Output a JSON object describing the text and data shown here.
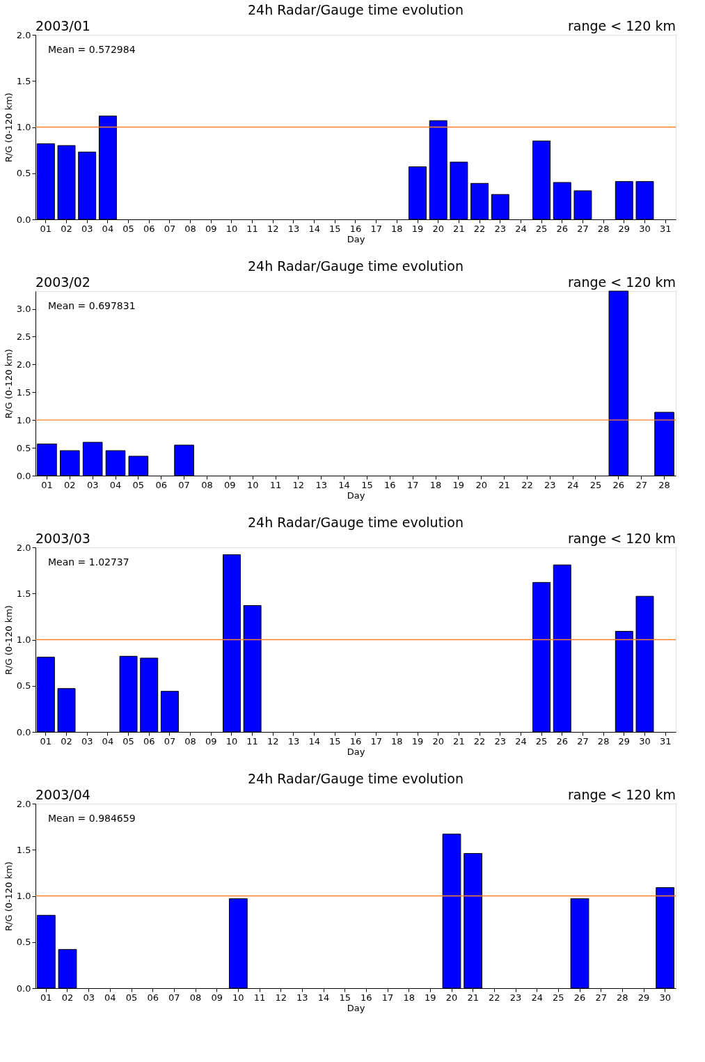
{
  "chart_data": [
    {
      "type": "bar",
      "title": "24h Radar/Gauge time evolution",
      "xlabel": "Day",
      "ylabel": "R/G    (0-120 km)",
      "categories": [
        "01",
        "02",
        "03",
        "04",
        "05",
        "06",
        "07",
        "08",
        "09",
        "10",
        "11",
        "12",
        "13",
        "14",
        "15",
        "16",
        "17",
        "18",
        "19",
        "20",
        "21",
        "22",
        "23",
        "24",
        "25",
        "26",
        "27",
        "28",
        "29",
        "30",
        "31"
      ],
      "values": [
        0.82,
        0.8,
        0.73,
        1.12,
        null,
        null,
        null,
        null,
        null,
        null,
        null,
        null,
        null,
        null,
        null,
        null,
        null,
        null,
        0.57,
        1.07,
        0.62,
        0.39,
        0.27,
        null,
        0.85,
        0.4,
        0.31,
        null,
        0.41,
        0.41,
        null
      ],
      "color": "#0000ff",
      "ylim": [
        0,
        2
      ],
      "yticks": [
        {
          "value": 0,
          "label": "0.0"
        },
        0.5,
        {
          "value": 1,
          "label": "1.0"
        },
        1.5,
        {
          "value": 2,
          "label": "2.0"
        }
      ],
      "ref_lines": [
        {
          "axis": "y",
          "value": 1,
          "color": "#ff7f27"
        }
      ],
      "annotations": [
        "2003/01",
        "range < 120 km",
        "Mean  =  0.572984"
      ]
    },
    {
      "type": "bar",
      "title": "24h Radar/Gauge time evolution",
      "xlabel": "Day",
      "ylabel": "R/G    (0-120 km)",
      "categories": [
        "01",
        "02",
        "03",
        "04",
        "05",
        "06",
        "07",
        "08",
        "09",
        "10",
        "11",
        "12",
        "13",
        "14",
        "15",
        "16",
        "17",
        "18",
        "19",
        "20",
        "21",
        "22",
        "23",
        "24",
        "25",
        "26",
        "27",
        "28"
      ],
      "values": [
        0.57,
        0.45,
        0.6,
        0.45,
        0.35,
        null,
        0.55,
        null,
        null,
        null,
        null,
        null,
        null,
        null,
        null,
        null,
        null,
        null,
        null,
        null,
        null,
        null,
        null,
        null,
        null,
        3.32,
        null,
        1.14
      ],
      "color": "#0000ff",
      "ylim": [
        0,
        3.32
      ],
      "yticks": [
        {
          "value": 0,
          "label": "0.0"
        },
        0.5,
        {
          "value": 1,
          "label": "1.0"
        },
        1.5,
        {
          "value": 2,
          "label": "2.0"
        },
        2.5,
        {
          "value": 3,
          "label": "3.0"
        }
      ],
      "ref_lines": [
        {
          "axis": "y",
          "value": 1,
          "color": "#ff7f27"
        }
      ],
      "annotations": [
        "2003/02",
        "range < 120 km",
        "Mean  =  0.697831"
      ]
    },
    {
      "type": "bar",
      "title": "24h Radar/Gauge time evolution",
      "xlabel": "Day",
      "ylabel": "R/G    (0-120 km)",
      "categories": [
        "01",
        "02",
        "03",
        "04",
        "05",
        "06",
        "07",
        "08",
        "09",
        "10",
        "11",
        "12",
        "13",
        "14",
        "15",
        "16",
        "17",
        "18",
        "19",
        "20",
        "21",
        "22",
        "23",
        "24",
        "25",
        "26",
        "27",
        "28",
        "29",
        "30",
        "31"
      ],
      "values": [
        0.81,
        0.47,
        null,
        null,
        0.82,
        0.8,
        0.44,
        null,
        null,
        1.92,
        1.37,
        null,
        null,
        null,
        null,
        null,
        null,
        null,
        null,
        null,
        null,
        null,
        null,
        null,
        1.62,
        1.81,
        null,
        null,
        1.09,
        1.47,
        null
      ],
      "color": "#0000ff",
      "ylim": [
        0,
        2
      ],
      "yticks": [
        {
          "value": 0,
          "label": "0.0"
        },
        0.5,
        {
          "value": 1,
          "label": "1.0"
        },
        1.5,
        {
          "value": 2,
          "label": "2.0"
        }
      ],
      "ref_lines": [
        {
          "axis": "y",
          "value": 1,
          "color": "#ff7f27"
        }
      ],
      "annotations": [
        "2003/03",
        "range < 120 km",
        "Mean  =  1.02737"
      ]
    },
    {
      "type": "bar",
      "title": "24h Radar/Gauge time evolution",
      "xlabel": "Day",
      "ylabel": "R/G    (0-120 km)",
      "categories": [
        "01",
        "02",
        "03",
        "04",
        "05",
        "06",
        "07",
        "08",
        "09",
        "10",
        "11",
        "12",
        "13",
        "14",
        "15",
        "16",
        "17",
        "18",
        "19",
        "20",
        "21",
        "22",
        "23",
        "24",
        "25",
        "26",
        "27",
        "28",
        "29",
        "30"
      ],
      "values": [
        0.79,
        0.42,
        null,
        null,
        null,
        null,
        null,
        null,
        null,
        0.97,
        null,
        null,
        null,
        null,
        null,
        null,
        null,
        null,
        null,
        1.67,
        1.46,
        null,
        null,
        null,
        null,
        0.97,
        null,
        null,
        null,
        1.09
      ],
      "color": "#0000ff",
      "ylim": [
        0,
        2
      ],
      "yticks": [
        {
          "value": 0,
          "label": "0.0"
        },
        0.5,
        {
          "value": 1,
          "label": "1.0"
        },
        1.5,
        {
          "value": 2,
          "label": "2.0"
        }
      ],
      "ref_lines": [
        {
          "axis": "y",
          "value": 1,
          "color": "#ff7f27"
        }
      ],
      "annotations": [
        "2003/04",
        "range < 120 km",
        "Mean  =  0.984659"
      ]
    }
  ]
}
